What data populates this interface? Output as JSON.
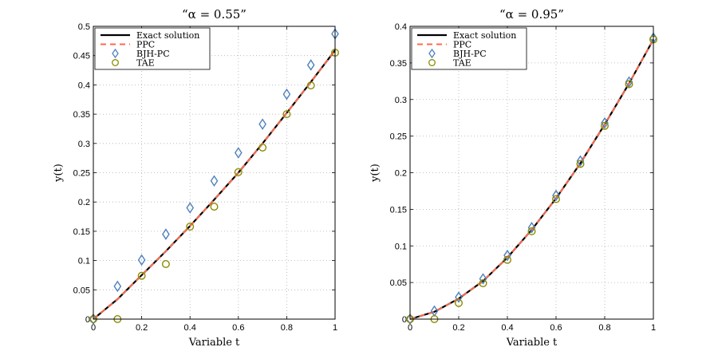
{
  "colors": {
    "exact": "#000000",
    "ppc": "#ff6a4d",
    "bjh": "#4f81bd",
    "tae": "#8c8c00",
    "grid": "#b0b0b0"
  },
  "chart_data": [
    {
      "type": "line",
      "title": "“α = 0.55”",
      "xlabel": "Variable t",
      "ylabel": "y(t)",
      "xlim": [
        0,
        1
      ],
      "ylim": [
        0,
        0.5
      ],
      "xticks": [
        0,
        0.2,
        0.4,
        0.6,
        0.8,
        1
      ],
      "xtick_labels": [
        "0",
        "0.2",
        "0.4",
        "0.6",
        "0.8",
        "1"
      ],
      "yticks": [
        0,
        0.05,
        0.1,
        0.15,
        0.2,
        0.25,
        0.3,
        0.35,
        0.4,
        0.45,
        0.5
      ],
      "ytick_labels": [
        "0",
        "0.05",
        "0.1",
        "0.15",
        "0.2",
        "0.25",
        "0.3",
        "0.35",
        "0.4",
        "0.45",
        "0.5"
      ],
      "grid": true,
      "legend": "top-left",
      "x": [
        0,
        0.1,
        0.2,
        0.3,
        0.4,
        0.5,
        0.6,
        0.7,
        0.8,
        0.9,
        1
      ],
      "series": [
        {
          "name": "Exact solution",
          "style": "solid",
          "values": [
            0,
            0.034,
            0.075,
            0.116,
            0.159,
            0.204,
            0.25,
            0.3,
            0.352,
            0.405,
            0.459
          ]
        },
        {
          "name": "PPC",
          "style": "dashed",
          "values": [
            0,
            0.034,
            0.075,
            0.116,
            0.159,
            0.204,
            0.25,
            0.3,
            0.352,
            0.405,
            0.459
          ]
        },
        {
          "name": "BJH-PC",
          "style": "diamond",
          "values": [
            0,
            0.056,
            0.101,
            0.145,
            0.19,
            0.236,
            0.284,
            0.333,
            0.384,
            0.434,
            0.487
          ]
        },
        {
          "name": "TAE",
          "style": "circle",
          "values": [
            0,
            0,
            0.074,
            0.094,
            0.158,
            0.192,
            0.251,
            0.293,
            0.35,
            0.399,
            0.455
          ]
        }
      ]
    },
    {
      "type": "line",
      "title": "“α = 0.95”",
      "xlabel": "Variable t",
      "ylabel": "y(t)",
      "xlim": [
        0,
        1
      ],
      "ylim": [
        0,
        0.4
      ],
      "xticks": [
        0,
        0.2,
        0.4,
        0.6,
        0.8,
        1
      ],
      "xtick_labels": [
        "0",
        "0.2",
        "0.4",
        "0.6",
        "0.8",
        "1"
      ],
      "yticks": [
        0,
        0.05,
        0.1,
        0.15,
        0.2,
        0.25,
        0.3,
        0.35,
        0.4
      ],
      "ytick_labels": [
        "0",
        "0.05",
        "0.1",
        "0.15",
        "0.2",
        "0.25",
        "0.3",
        "0.35",
        "0.4"
      ],
      "grid": true,
      "legend": "top-left",
      "x": [
        0,
        0.1,
        0.2,
        0.3,
        0.4,
        0.5,
        0.6,
        0.7,
        0.8,
        0.9,
        1
      ],
      "series": [
        {
          "name": "Exact solution",
          "style": "solid",
          "values": [
            0,
            0.01,
            0.028,
            0.052,
            0.084,
            0.122,
            0.165,
            0.213,
            0.266,
            0.322,
            0.382
          ]
        },
        {
          "name": "PPC",
          "style": "dashed",
          "values": [
            0,
            0.01,
            0.028,
            0.052,
            0.084,
            0.122,
            0.165,
            0.213,
            0.266,
            0.322,
            0.382
          ]
        },
        {
          "name": "BJH-PC",
          "style": "diamond",
          "values": [
            0,
            0.011,
            0.03,
            0.055,
            0.087,
            0.125,
            0.169,
            0.216,
            0.268,
            0.324,
            0.384
          ]
        },
        {
          "name": "TAE",
          "style": "circle",
          "values": [
            0,
            0,
            0.022,
            0.049,
            0.081,
            0.12,
            0.164,
            0.212,
            0.264,
            0.321,
            0.382
          ]
        }
      ]
    }
  ]
}
